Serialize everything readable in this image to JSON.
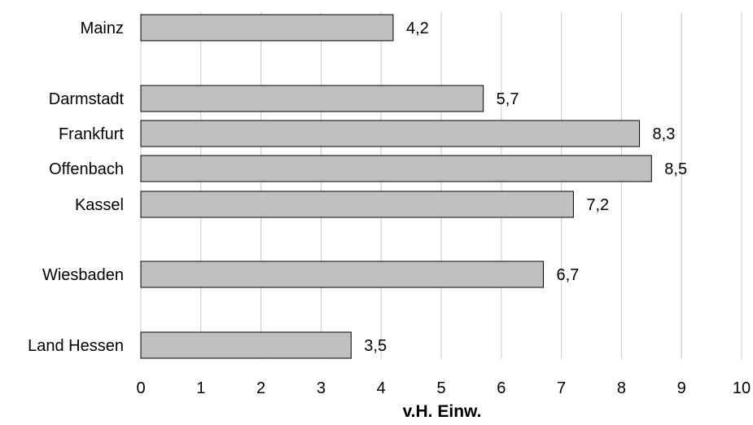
{
  "chart_data": {
    "type": "bar",
    "orientation": "horizontal",
    "categories": [
      "Mainz",
      "Darmstadt",
      "Frankfurt",
      "Offenbach",
      "Kassel",
      "Wiesbaden",
      "Land Hessen"
    ],
    "values": [
      4.2,
      5.7,
      8.3,
      8.5,
      7.2,
      6.7,
      3.5
    ],
    "value_labels": [
      "4,2",
      "5,7",
      "8,3",
      "8,5",
      "7,2",
      "6,7",
      "3,5"
    ],
    "title": "",
    "xlabel": "v.H. Einw.",
    "ylabel": "",
    "xlim": [
      0,
      10
    ],
    "x_ticks": [
      "0",
      "1",
      "2",
      "3",
      "4",
      "5",
      "6",
      "7",
      "8",
      "9",
      "10"
    ],
    "grid": "vertical",
    "legend": "none",
    "colors": {
      "bar_fill": "#c0c0c0",
      "bar_stroke": "#000000",
      "grid": "#c8c8c8"
    }
  }
}
